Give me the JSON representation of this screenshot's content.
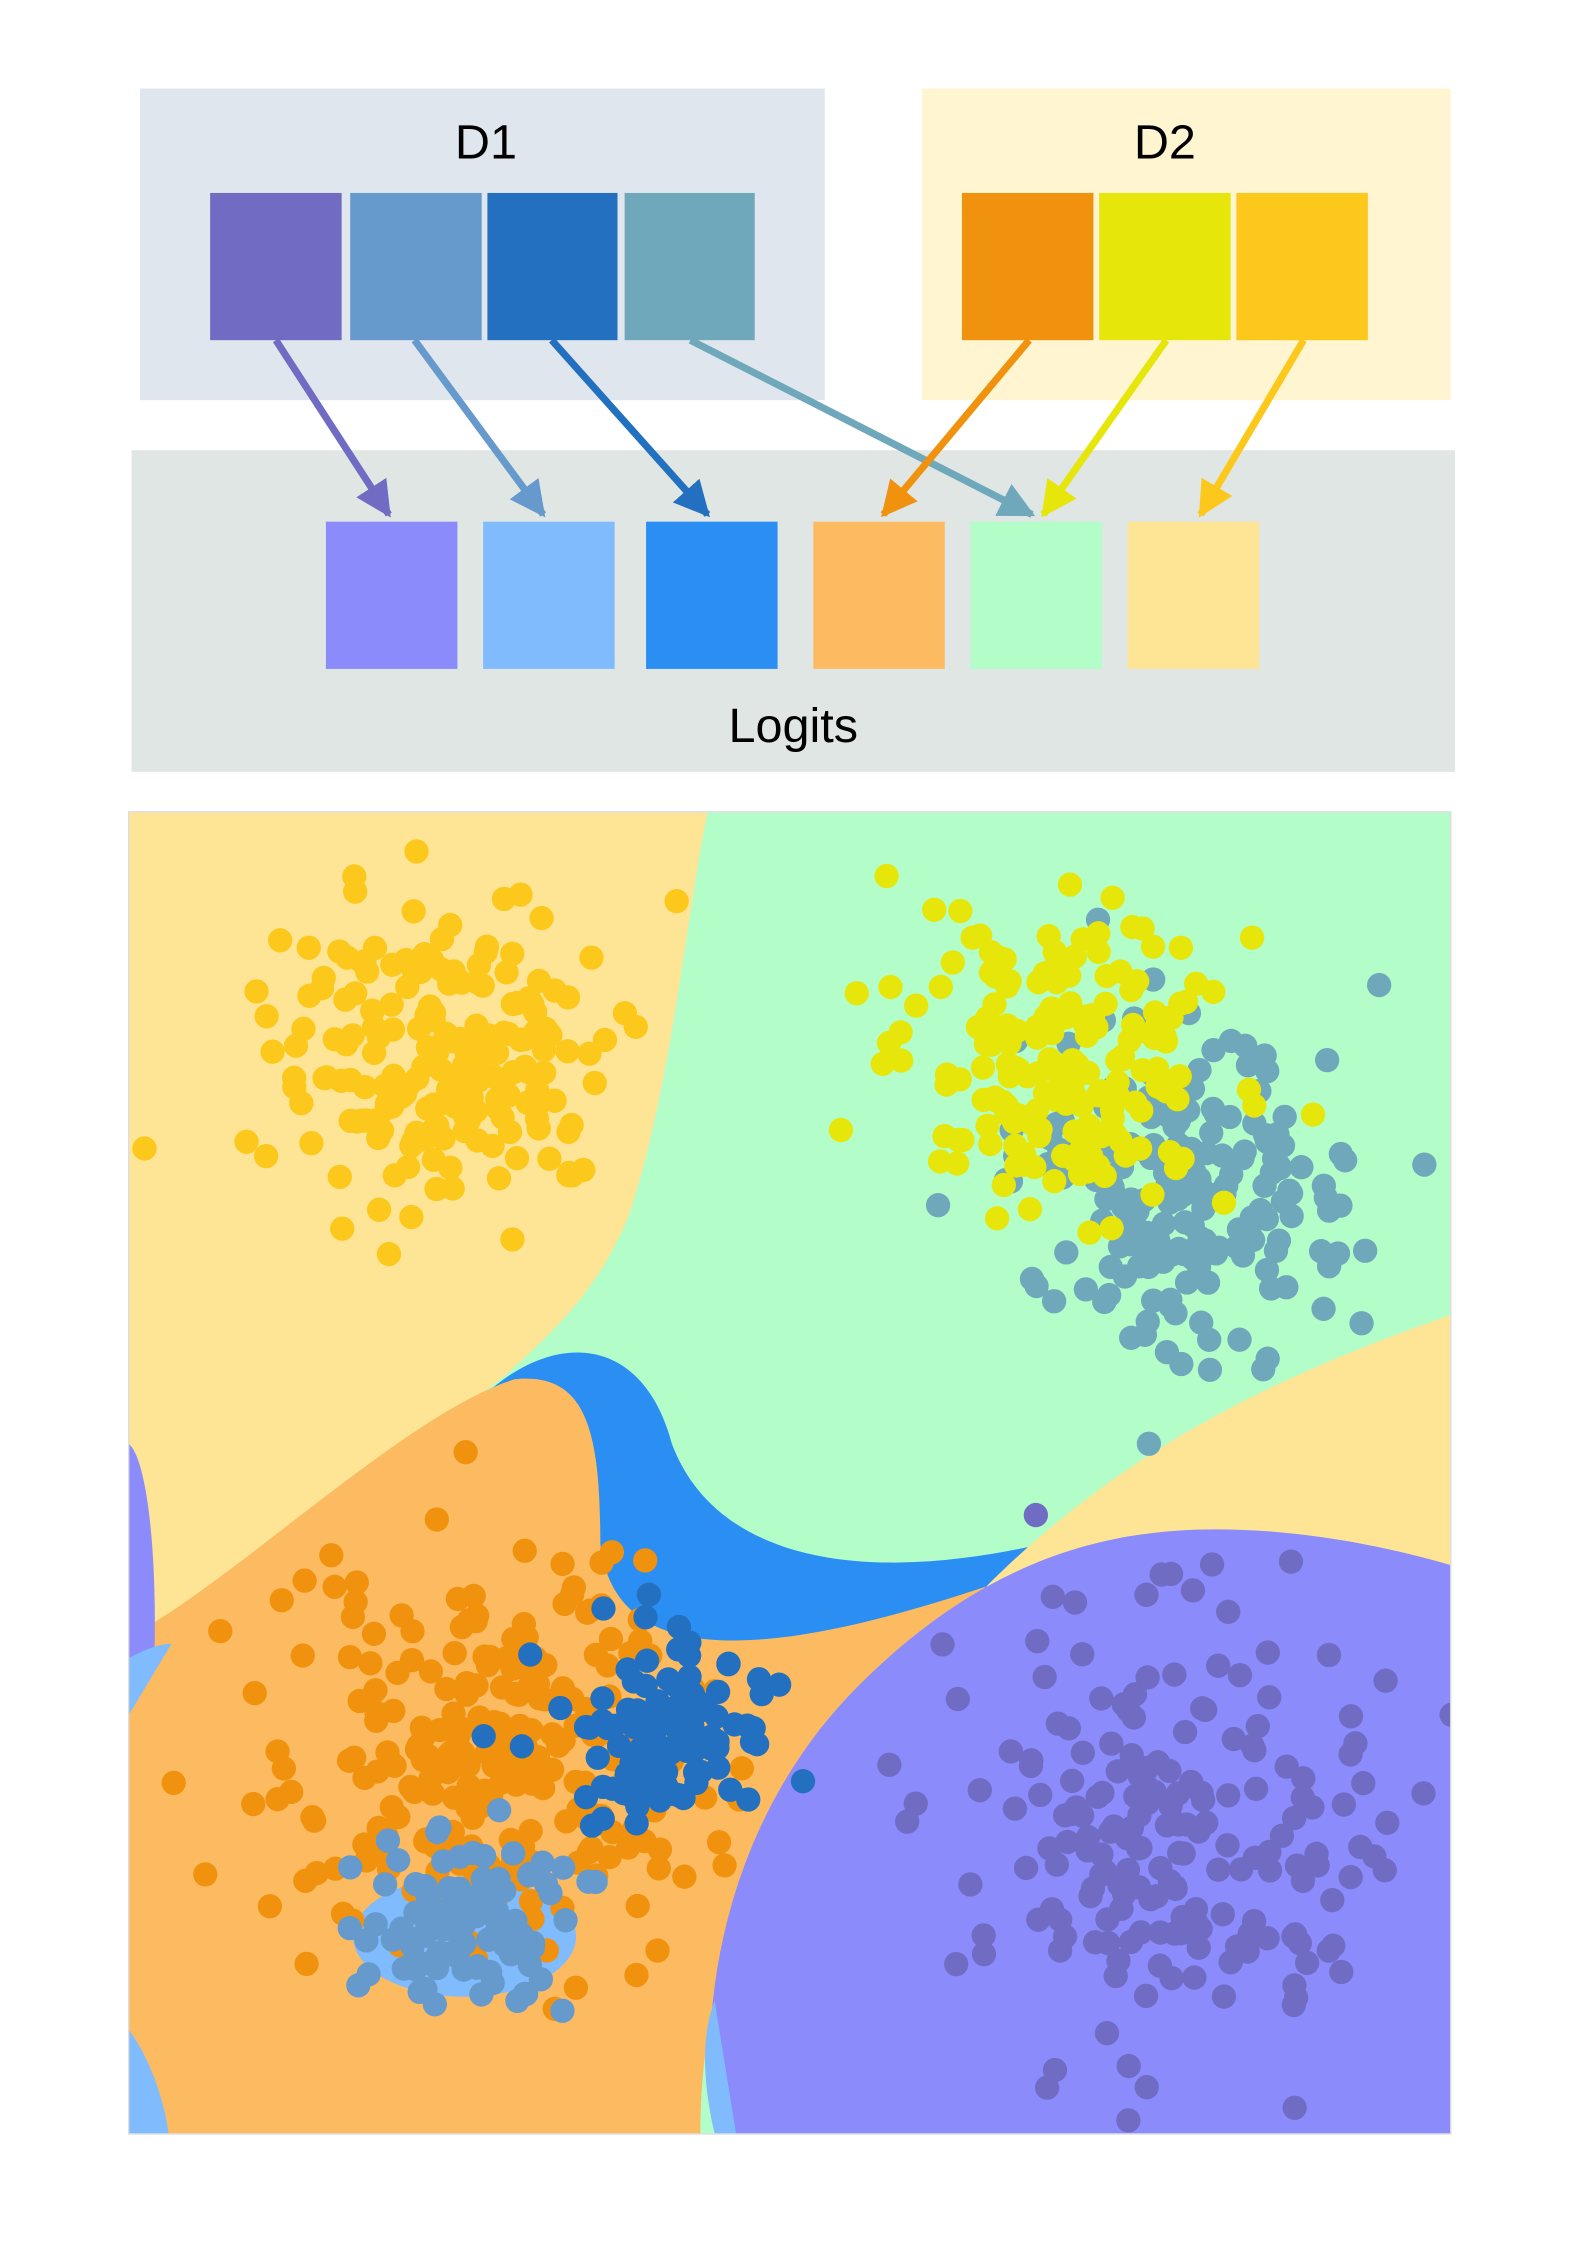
{
  "D1": {
    "title": "D1"
  },
  "D2": {
    "title": "D2"
  },
  "logits": {
    "label": "Logits"
  }
}
